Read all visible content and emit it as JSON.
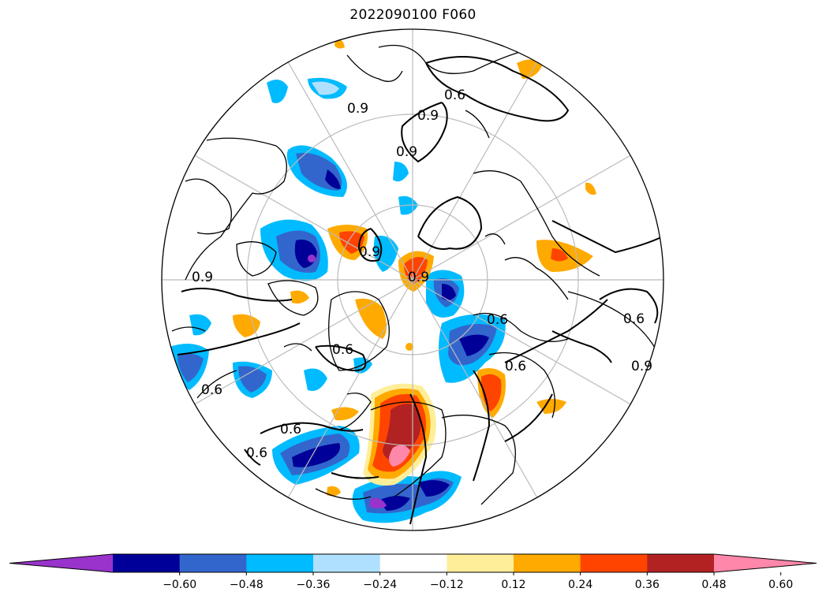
{
  "title": "2022090100 F060",
  "colorbar": {
    "colors": [
      "#9933cc",
      "#000099",
      "#3366cc",
      "#00bbff",
      "#b0e0ff",
      "#ffffff",
      "#ffee99",
      "#ffaa00",
      "#ff4400",
      "#b22222",
      "#ff88aa"
    ],
    "tick_labels": [
      "−0.60",
      "−0.48",
      "−0.36",
      "−0.24",
      "−0.12",
      "0.12",
      "0.24",
      "0.36",
      "0.48",
      "0.60"
    ],
    "extend": "both"
  },
  "contours": {
    "color": "#000000",
    "labels": [
      "0.6",
      "0.9",
      "0.9",
      "0.6",
      "0.9",
      "0.9",
      "0.6",
      "0.9",
      "0.6",
      "0.6",
      "0.6",
      "0.6",
      "0.6",
      "0.9",
      "0.9"
    ]
  },
  "map": {
    "projection": "north-polar-stereographic",
    "graticule_color": "#bbbbbb",
    "coastline_color": "#000000"
  }
}
